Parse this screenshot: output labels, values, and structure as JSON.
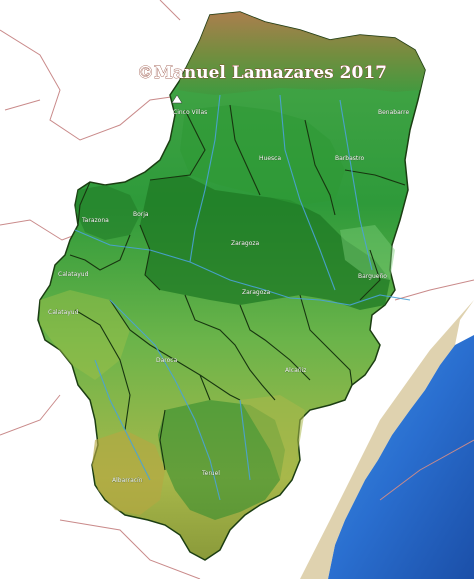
{
  "watermark": "©Manuel Lamazares 2017",
  "peak_label": "Cinco Villas",
  "place_labels": {
    "huesca": "Huesca",
    "barbastro": "Barbastro",
    "benabarre": "Benabarre",
    "tarazona": "Tarazona",
    "borja": "Borja",
    "zaragoza_north": "Zaragoza",
    "zaragoza_south": "Zaragoza",
    "caspe": "Bargueño",
    "calatayud_north": "Calatayud",
    "calatayud_south": "Calatayud",
    "daroca": "Daroca",
    "alcaniz": "Alcañiz",
    "teruel": "Teruel",
    "albarracin": "Albarracín"
  },
  "colors": {
    "sea": "#2a6fd0",
    "pyrenees": "#b07a4a",
    "lowland_green": "#1f8a2a",
    "highland_yellow": "#c9c24a",
    "border": "#1b3d12",
    "river": "#4aa3d8",
    "frontier": "#c07a7a"
  }
}
